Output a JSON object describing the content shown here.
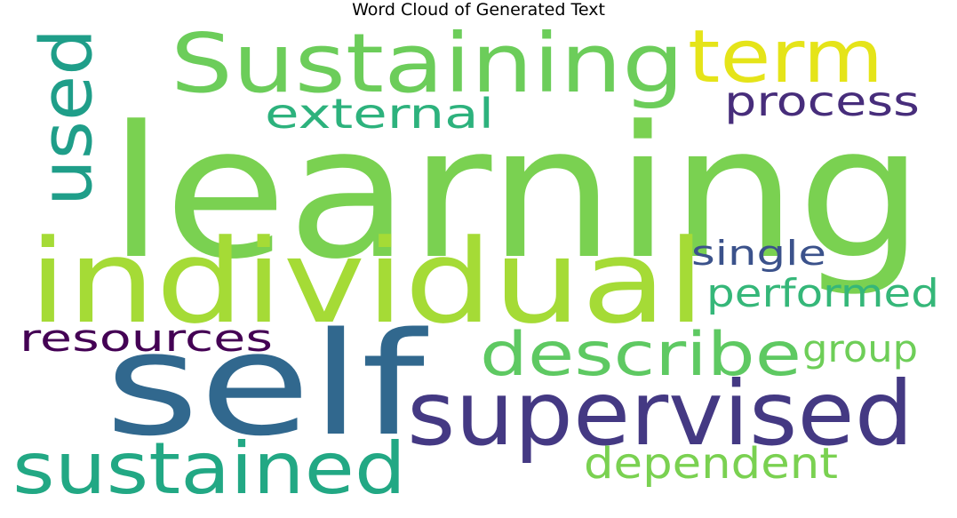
{
  "chart_data": {
    "type": "wordcloud",
    "title": "Word Cloud of Generated Text",
    "background": "#ffffff",
    "words": [
      {
        "text": "learning",
        "rank": 1,
        "color": "#7ad151"
      },
      {
        "text": "self",
        "rank": 2,
        "color": "#31688e"
      },
      {
        "text": "individual",
        "rank": 3,
        "color": "#a5db36"
      },
      {
        "text": "supervised",
        "rank": 4,
        "color": "#443983"
      },
      {
        "text": "Sustaining",
        "rank": 5,
        "color": "#6ccd5a"
      },
      {
        "text": "sustained",
        "rank": 6,
        "color": "#22a884"
      },
      {
        "text": "describe",
        "rank": 7,
        "color": "#5ec962"
      },
      {
        "text": "used",
        "rank": 8,
        "color": "#1f9e89"
      },
      {
        "text": "term",
        "rank": 9,
        "color": "#e5e419"
      },
      {
        "text": "dependent",
        "rank": 10,
        "color": "#7ad151"
      },
      {
        "text": "external",
        "rank": 11,
        "color": "#2db27d"
      },
      {
        "text": "process",
        "rank": 12,
        "color": "#472d7b"
      },
      {
        "text": "performed",
        "rank": 13,
        "color": "#35b779"
      },
      {
        "text": "resources",
        "rank": 14,
        "color": "#440154"
      },
      {
        "text": "group",
        "rank": 15,
        "color": "#6ece58"
      },
      {
        "text": "single",
        "rank": 16,
        "color": "#3b528b"
      }
    ]
  }
}
